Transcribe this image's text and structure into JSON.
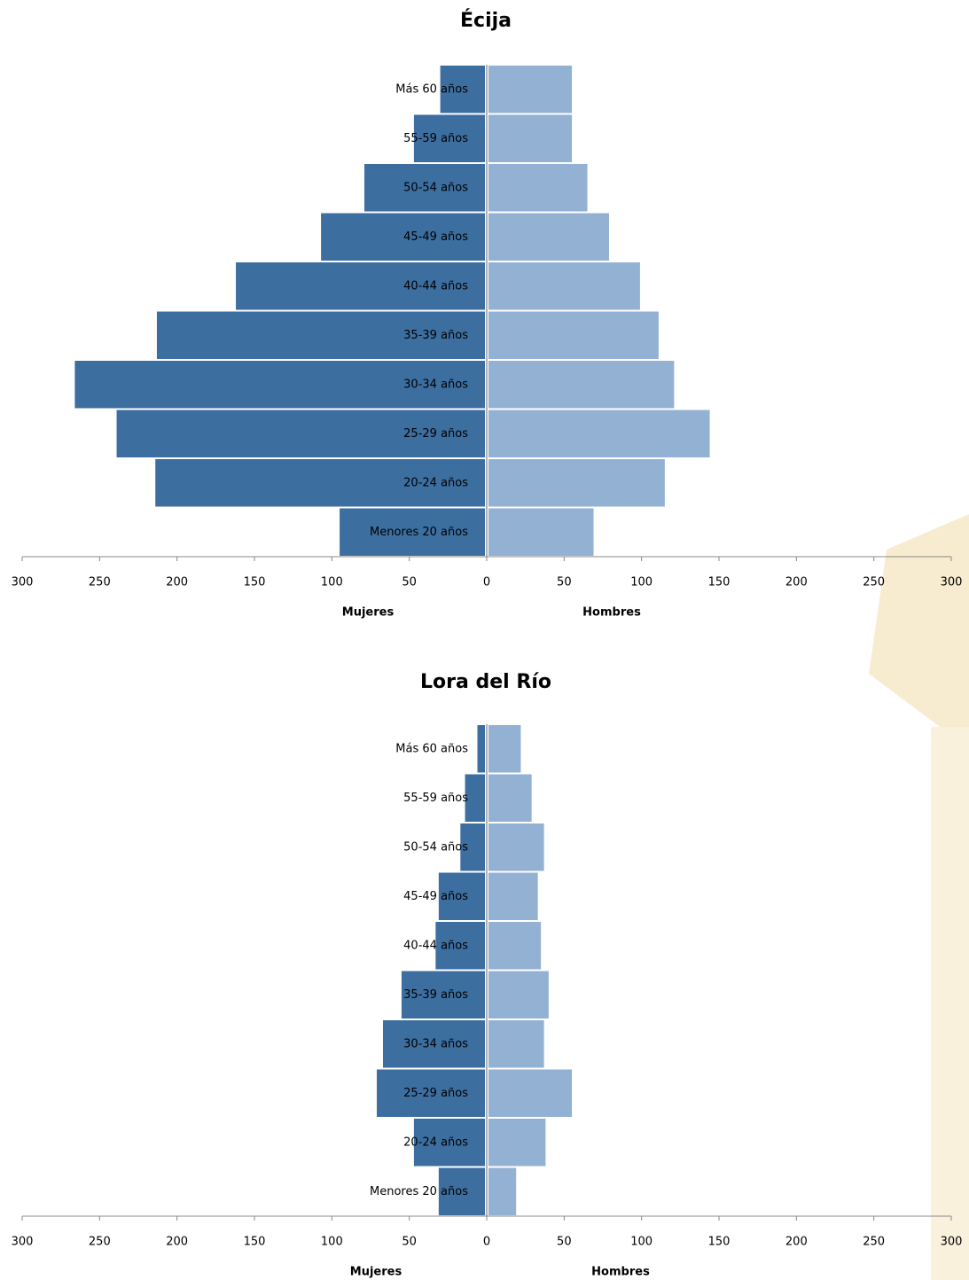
{
  "chart_data": [
    {
      "type": "pyramid",
      "title": "Écija",
      "categories": [
        "Más 60 años",
        "55-59 años",
        "50-54 años",
        "45-49 años",
        "40-44 años",
        "35-39 años",
        "30-34 años",
        "25-29 años",
        "20-24 años",
        "Menores 20 años"
      ],
      "series": [
        {
          "name": "Mujeres",
          "color": "#3d6ea0",
          "values": [
            -30,
            -47,
            -79,
            -107,
            -162,
            -213,
            -266,
            -239,
            -214,
            -95
          ]
        },
        {
          "name": "Hombres",
          "color": "#93b1d3",
          "values": [
            55,
            55,
            65,
            79,
            99,
            111,
            121,
            144,
            115,
            69
          ]
        }
      ],
      "xlim": [
        -300,
        300
      ],
      "xticks": [
        {
          "value": -300,
          "label": "300"
        },
        {
          "value": -250,
          "label": "250"
        },
        {
          "value": -200,
          "label": "200"
        },
        {
          "value": -150,
          "label": "150"
        },
        {
          "value": -100,
          "label": "100"
        },
        {
          "value": -50,
          "label": "50"
        },
        0,
        50,
        100,
        150,
        200,
        250,
        300
      ]
    },
    {
      "type": "pyramid",
      "title": "Lora del Río",
      "categories": [
        "Más 60 años",
        "55-59 años",
        "50-54 años",
        "45-49 años",
        "40-44 años",
        "35-39 años",
        "30-34 años",
        "25-29 años",
        "20-24 años",
        "Menores 20 años"
      ],
      "series": [
        {
          "name": "Mujeres",
          "color": "#3d6ea0",
          "values": [
            -6,
            -14,
            -17,
            -31,
            -33,
            -55,
            -67,
            -71,
            -47,
            -31
          ]
        },
        {
          "name": "Hombres",
          "color": "#93b1d3",
          "values": [
            22,
            29,
            37,
            33,
            35,
            40,
            37,
            55,
            38,
            19
          ]
        }
      ],
      "xlim": [
        -300,
        300
      ],
      "xticks": [
        {
          "value": -300,
          "label": "300"
        },
        {
          "value": -250,
          "label": "250"
        },
        {
          "value": -200,
          "label": "200"
        },
        {
          "value": -150,
          "label": "150"
        },
        {
          "value": -100,
          "label": "100"
        },
        {
          "value": -50,
          "label": "50"
        },
        0,
        50,
        100,
        150,
        200,
        250,
        300
      ]
    }
  ]
}
